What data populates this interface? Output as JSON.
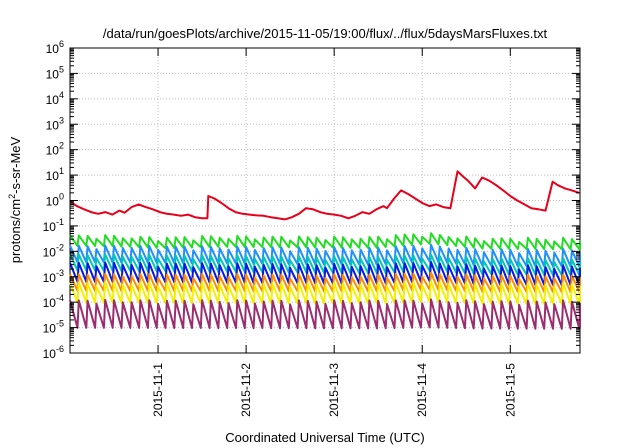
{
  "chart_data": {
    "type": "line",
    "title": "/data/run/goesPlots/archive/2015-11-05/19:00/flux/../flux/5daysMarsFluxes.txt",
    "xlabel": "Coordinated Universal Time (UTC)",
    "ylabel_prefix": "protons/cm",
    "ylabel_sup": "2",
    "ylabel_suffix": "-s-sr-MeV",
    "yscale": "log",
    "ylim_exponent": [
      -6,
      6
    ],
    "y_ticks": [
      {
        "base": "10",
        "exp": "6"
      },
      {
        "base": "10",
        "exp": "5"
      },
      {
        "base": "10",
        "exp": "4"
      },
      {
        "base": "10",
        "exp": "3"
      },
      {
        "base": "10",
        "exp": "2"
      },
      {
        "base": "10",
        "exp": "1"
      },
      {
        "base": "10",
        "exp": "0"
      },
      {
        "base": "10",
        "exp": "-1"
      },
      {
        "base": "10",
        "exp": "-2"
      },
      {
        "base": "10",
        "exp": "-3"
      },
      {
        "base": "10",
        "exp": "-4"
      },
      {
        "base": "10",
        "exp": "-5"
      },
      {
        "base": "10",
        "exp": "-6"
      }
    ],
    "xlim_days": [
      "2015-10-31 00:00",
      "2015-11-05 19:00"
    ],
    "x_ticks": [
      "2015-11-1",
      "2015-11-2",
      "2015-11-3",
      "2015-11-4",
      "2015-11-5"
    ],
    "grid": true,
    "legend": "none",
    "series": [
      {
        "color": "#e8001a",
        "x_days": [
          0.0,
          0.08,
          0.16,
          0.24,
          0.32,
          0.4,
          0.48,
          0.56,
          0.62,
          0.7,
          0.78,
          0.86,
          0.94,
          1.02,
          1.1,
          1.18,
          1.26,
          1.34,
          1.42,
          1.5,
          1.56,
          1.57,
          1.64,
          1.72,
          1.8,
          1.88,
          1.96,
          2.04,
          2.12,
          2.2,
          2.28,
          2.36,
          2.44,
          2.52,
          2.6,
          2.68,
          2.76,
          2.84,
          2.92,
          3.0,
          3.08,
          3.16,
          3.24,
          3.32,
          3.4,
          3.48,
          3.56,
          3.6,
          3.68,
          3.76,
          3.84,
          3.92,
          4.0,
          4.08,
          4.16,
          4.24,
          4.32,
          4.4,
          4.46,
          4.52,
          4.6,
          4.68,
          4.76,
          4.84,
          4.92,
          5.0,
          5.08,
          5.16,
          5.24,
          5.32,
          5.4,
          5.48,
          5.54,
          5.62,
          5.7,
          5.78
        ],
        "y": [
          0.9,
          0.6,
          0.45,
          0.35,
          0.3,
          0.35,
          0.28,
          0.4,
          0.33,
          0.55,
          0.7,
          0.55,
          0.45,
          0.35,
          0.3,
          0.28,
          0.25,
          0.28,
          0.22,
          0.2,
          0.2,
          1.5,
          1.2,
          0.8,
          0.5,
          0.35,
          0.3,
          0.28,
          0.26,
          0.25,
          0.22,
          0.2,
          0.18,
          0.22,
          0.3,
          0.5,
          0.45,
          0.35,
          0.3,
          0.28,
          0.25,
          0.2,
          0.25,
          0.35,
          0.3,
          0.45,
          0.6,
          0.5,
          1.2,
          2.5,
          1.8,
          1.2,
          0.8,
          0.6,
          0.7,
          0.55,
          0.5,
          14,
          9,
          6,
          3.0,
          8.0,
          6.0,
          4.0,
          2.5,
          1.5,
          1.0,
          0.7,
          0.5,
          0.45,
          0.4,
          5.5,
          4.0,
          3.0,
          2.5,
          2.0
        ]
      },
      {
        "color": "#22dd22",
        "pattern": "sawtooth",
        "period_days": 0.1,
        "baseline": 0.022,
        "amplitude_ratio": 1.8,
        "trend_to": 0.016,
        "bumps": [
          {
            "x_day": 1.0,
            "factor": 0.85
          },
          {
            "x_day": 4.0,
            "factor": 1.5
          }
        ]
      },
      {
        "color": "#1e90ff",
        "pattern": "sawtooth",
        "period_days": 0.1,
        "baseline": 0.006,
        "amplitude_ratio": 2.6,
        "trend_to": 0.004,
        "bumps": [
          {
            "x_day": 4.0,
            "factor": 1.4
          }
        ]
      },
      {
        "color": "#00c8b4",
        "pattern": "sawtooth",
        "period_days": 0.1,
        "baseline": 0.0028,
        "amplitude_ratio": 2.5,
        "trend_to": 0.0018,
        "bumps": [
          {
            "x_day": 4.0,
            "factor": 1.3
          }
        ]
      },
      {
        "color": "#0a18e6",
        "pattern": "sawtooth",
        "period_days": 0.1,
        "baseline": 0.0011,
        "amplitude_ratio": 3.0,
        "trend_to": 0.0008,
        "bumps": [
          {
            "x_day": 4.0,
            "factor": 1.3
          }
        ]
      },
      {
        "color": "#ff8c00",
        "pattern": "sawtooth",
        "period_days": 0.1,
        "baseline": 0.00045,
        "amplitude_ratio": 2.6,
        "trend_to": 0.0004,
        "bumps": [
          {
            "x_day": 4.0,
            "factor": 1.2
          }
        ]
      },
      {
        "color": "#f0f000",
        "pattern": "sawtooth",
        "period_days": 0.1,
        "baseline": 0.00017,
        "amplitude_ratio": 3.2,
        "trend_to": 0.00015,
        "bumps": [
          {
            "x_day": 4.0,
            "factor": 1.2
          }
        ]
      },
      {
        "color": "#9b2d6f",
        "pattern": "sawtooth",
        "period_days": 0.1,
        "baseline": 2.2e-05,
        "amplitude_ratio": 5.0,
        "trend_to": 2e-05,
        "bumps": [
          {
            "x_day": 4.0,
            "factor": 1.1
          }
        ]
      }
    ]
  }
}
